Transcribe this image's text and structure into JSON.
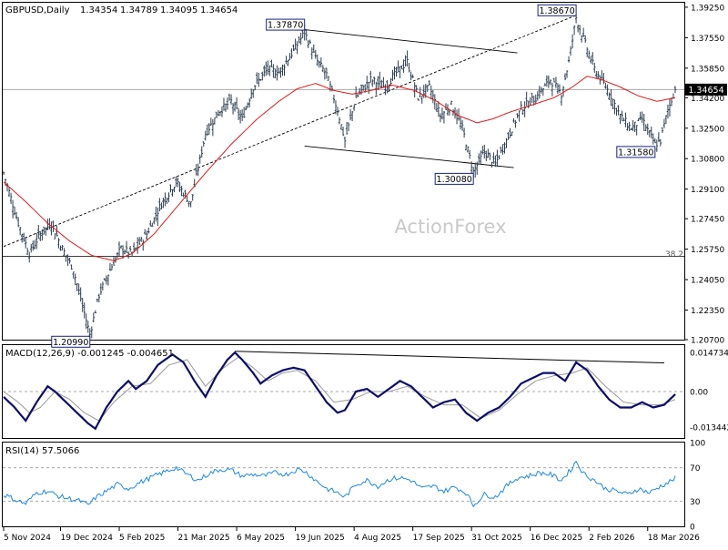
{
  "chart_data": [
    {
      "type": "line",
      "header": {
        "symbol": "GBPUSD,Daily",
        "ohlc": [
          "1.34354",
          "1.34789",
          "1.34095",
          "1.34654"
        ]
      },
      "watermark": "ActionForex",
      "ylim": [
        1.207,
        1.395
      ],
      "yticks": [
        "1.39250",
        "1.37550",
        "1.35850",
        "1.34200",
        "1.32500",
        "1.30800",
        "1.29100",
        "1.27450",
        "1.25750",
        "1.24050",
        "1.22350",
        "1.20700"
      ],
      "current_price_label": "1.34654",
      "current_price": 1.34654,
      "fib_level": {
        "label": "38.2",
        "value": 1.2535
      },
      "x_tick_labels": [
        "5 Nov 2024",
        "19 Dec 2024",
        "5 Feb 2025",
        "21 Mar 2025",
        "6 May 2025",
        "19 Jun 2025",
        "4 Aug 2025",
        "17 Sep 2025",
        "31 Oct 2025",
        "16 Dec 2025",
        "2 Feb 2026",
        "18 Mar 2026"
      ],
      "x_tick_index": [
        0,
        31,
        63,
        95,
        127,
        159,
        191,
        223,
        255,
        287,
        319,
        351
      ],
      "price_labels": [
        {
          "text": "1.37870",
          "index": 164,
          "value": 1.3787,
          "pos": "above"
        },
        {
          "text": "1.38670",
          "index": 312,
          "value": 1.3867,
          "pos": "above"
        },
        {
          "text": "1.30080",
          "index": 256,
          "value": 1.3008,
          "pos": "below"
        },
        {
          "text": "1.31580",
          "index": 355,
          "value": 1.3158,
          "pos": "below"
        },
        {
          "text": "1.20990",
          "index": 47,
          "value": 1.2099,
          "pos": "below"
        }
      ],
      "anchors": [
        [
          0,
          1.3
        ],
        [
          8,
          1.272
        ],
        [
          14,
          1.255
        ],
        [
          20,
          1.266
        ],
        [
          26,
          1.272
        ],
        [
          32,
          1.258
        ],
        [
          38,
          1.246
        ],
        [
          44,
          1.222
        ],
        [
          47,
          1.2099
        ],
        [
          52,
          1.232
        ],
        [
          58,
          1.246
        ],
        [
          64,
          1.258
        ],
        [
          70,
          1.255
        ],
        [
          78,
          1.266
        ],
        [
          86,
          1.283
        ],
        [
          94,
          1.295
        ],
        [
          102,
          1.283
        ],
        [
          110,
          1.322
        ],
        [
          118,
          1.335
        ],
        [
          124,
          1.34
        ],
        [
          130,
          1.33
        ],
        [
          136,
          1.348
        ],
        [
          144,
          1.358
        ],
        [
          150,
          1.356
        ],
        [
          158,
          1.368
        ],
        [
          164,
          1.3787
        ],
        [
          170,
          1.364
        ],
        [
          176,
          1.355
        ],
        [
          182,
          1.335
        ],
        [
          186,
          1.318
        ],
        [
          192,
          1.342
        ],
        [
          200,
          1.352
        ],
        [
          208,
          1.348
        ],
        [
          214,
          1.356
        ],
        [
          220,
          1.362
        ],
        [
          226,
          1.342
        ],
        [
          232,
          1.348
        ],
        [
          238,
          1.332
        ],
        [
          244,
          1.338
        ],
        [
          250,
          1.325
        ],
        [
          256,
          1.3008
        ],
        [
          262,
          1.312
        ],
        [
          268,
          1.305
        ],
        [
          274,
          1.318
        ],
        [
          282,
          1.336
        ],
        [
          290,
          1.342
        ],
        [
          298,
          1.352
        ],
        [
          304,
          1.344
        ],
        [
          308,
          1.362
        ],
        [
          312,
          1.3867
        ],
        [
          316,
          1.375
        ],
        [
          322,
          1.358
        ],
        [
          330,
          1.345
        ],
        [
          336,
          1.332
        ],
        [
          342,
          1.325
        ],
        [
          348,
          1.33
        ],
        [
          355,
          1.3158
        ],
        [
          358,
          1.318
        ],
        [
          362,
          1.335
        ],
        [
          366,
          1.34654
        ]
      ],
      "ma_anchors": [
        [
          0,
          1.295
        ],
        [
          12,
          1.284
        ],
        [
          24,
          1.272
        ],
        [
          36,
          1.262
        ],
        [
          48,
          1.254
        ],
        [
          60,
          1.251
        ],
        [
          70,
          1.255
        ],
        [
          82,
          1.266
        ],
        [
          96,
          1.283
        ],
        [
          110,
          1.3
        ],
        [
          124,
          1.316
        ],
        [
          138,
          1.33
        ],
        [
          150,
          1.34
        ],
        [
          160,
          1.347
        ],
        [
          170,
          1.35
        ],
        [
          180,
          1.346
        ],
        [
          190,
          1.344
        ],
        [
          200,
          1.346
        ],
        [
          212,
          1.349
        ],
        [
          224,
          1.346
        ],
        [
          236,
          1.34
        ],
        [
          248,
          1.332
        ],
        [
          258,
          1.328
        ],
        [
          266,
          1.33
        ],
        [
          276,
          1.334
        ],
        [
          288,
          1.338
        ],
        [
          300,
          1.342
        ],
        [
          310,
          1.348
        ],
        [
          318,
          1.354
        ],
        [
          326,
          1.352
        ],
        [
          336,
          1.348
        ],
        [
          346,
          1.343
        ],
        [
          356,
          1.34
        ],
        [
          366,
          1.342
        ]
      ],
      "trendlines": [
        {
          "from": [
            0,
            1.259
          ],
          "to": [
            312,
            1.388
          ],
          "style": "dashed"
        },
        {
          "from": [
            164,
            1.38
          ],
          "to": [
            280,
            1.367
          ],
          "style": "solid"
        },
        {
          "from": [
            164,
            1.315
          ],
          "to": [
            278,
            1.303
          ],
          "style": "solid"
        }
      ]
    },
    {
      "type": "line",
      "panel": "macd",
      "header": "MACD(12,26,9) -0.001245 -0.004651",
      "ylim": [
        -0.0175,
        0.0175
      ],
      "yticks": [
        {
          "label": "0.014734",
          "value": 0.01473
        },
        {
          "label": "0.00",
          "value": 0.0
        },
        {
          "label": "-0.013442",
          "value": -0.01344
        }
      ],
      "signal_label": "0.00",
      "macd_anchors": [
        [
          0,
          -0.002
        ],
        [
          6,
          -0.006
        ],
        [
          12,
          -0.011
        ],
        [
          18,
          -0.004
        ],
        [
          24,
          0.002
        ],
        [
          28,
          0.0
        ],
        [
          34,
          -0.004
        ],
        [
          40,
          -0.008
        ],
        [
          46,
          -0.012
        ],
        [
          50,
          -0.014
        ],
        [
          56,
          -0.006
        ],
        [
          62,
          0.0
        ],
        [
          68,
          0.004
        ],
        [
          72,
          0.001
        ],
        [
          78,
          0.004
        ],
        [
          84,
          0.01
        ],
        [
          92,
          0.014
        ],
        [
          98,
          0.011
        ],
        [
          104,
          0.004
        ],
        [
          110,
          -0.002
        ],
        [
          116,
          0.006
        ],
        [
          122,
          0.012
        ],
        [
          126,
          0.0147
        ],
        [
          130,
          0.012
        ],
        [
          136,
          0.007
        ],
        [
          140,
          0.003
        ],
        [
          146,
          0.006
        ],
        [
          152,
          0.008
        ],
        [
          158,
          0.009
        ],
        [
          164,
          0.008
        ],
        [
          170,
          0.002
        ],
        [
          176,
          -0.004
        ],
        [
          182,
          -0.008
        ],
        [
          186,
          -0.007
        ],
        [
          192,
          0.0
        ],
        [
          198,
          0.001
        ],
        [
          204,
          -0.002
        ],
        [
          210,
          0.001
        ],
        [
          216,
          0.004
        ],
        [
          222,
          0.002
        ],
        [
          228,
          -0.002
        ],
        [
          234,
          -0.006
        ],
        [
          240,
          -0.004
        ],
        [
          246,
          -0.003
        ],
        [
          252,
          -0.008
        ],
        [
          258,
          -0.011
        ],
        [
          264,
          -0.008
        ],
        [
          270,
          -0.006
        ],
        [
          276,
          -0.002
        ],
        [
          282,
          0.003
        ],
        [
          288,
          0.005
        ],
        [
          294,
          0.007
        ],
        [
          300,
          0.007
        ],
        [
          306,
          0.004
        ],
        [
          312,
          0.011
        ],
        [
          318,
          0.008
        ],
        [
          324,
          0.002
        ],
        [
          330,
          -0.003
        ],
        [
          336,
          -0.006
        ],
        [
          342,
          -0.006
        ],
        [
          348,
          -0.004
        ],
        [
          354,
          -0.006
        ],
        [
          360,
          -0.005
        ],
        [
          366,
          -0.001
        ]
      ],
      "signal_anchors": [
        [
          0,
          0.0
        ],
        [
          8,
          -0.004
        ],
        [
          14,
          -0.008
        ],
        [
          20,
          -0.006
        ],
        [
          28,
          0.0
        ],
        [
          36,
          -0.003
        ],
        [
          44,
          -0.008
        ],
        [
          52,
          -0.011
        ],
        [
          60,
          -0.004
        ],
        [
          70,
          0.002
        ],
        [
          80,
          0.003
        ],
        [
          90,
          0.01
        ],
        [
          100,
          0.012
        ],
        [
          110,
          0.002
        ],
        [
          120,
          0.009
        ],
        [
          128,
          0.013
        ],
        [
          136,
          0.009
        ],
        [
          144,
          0.004
        ],
        [
          152,
          0.007
        ],
        [
          160,
          0.008
        ],
        [
          170,
          0.004
        ],
        [
          180,
          -0.004
        ],
        [
          190,
          -0.003
        ],
        [
          200,
          0.0
        ],
        [
          210,
          0.0
        ],
        [
          220,
          0.002
        ],
        [
          230,
          -0.002
        ],
        [
          240,
          -0.005
        ],
        [
          250,
          -0.005
        ],
        [
          260,
          -0.01
        ],
        [
          270,
          -0.007
        ],
        [
          280,
          -0.001
        ],
        [
          290,
          0.004
        ],
        [
          300,
          0.006
        ],
        [
          310,
          0.007
        ],
        [
          318,
          0.009
        ],
        [
          328,
          0.002
        ],
        [
          338,
          -0.004
        ],
        [
          348,
          -0.005
        ],
        [
          358,
          -0.005
        ],
        [
          366,
          -0.003
        ]
      ],
      "trendline": {
        "from": [
          126,
          0.0152
        ],
        "to": [
          360,
          0.0108
        ]
      }
    },
    {
      "type": "line",
      "panel": "rsi",
      "header": "RSI(14) 57.5066",
      "ylim": [
        0,
        100
      ],
      "yticks": [
        {
          "label": "100",
          "value": 100
        },
        {
          "label": "70",
          "value": 70
        },
        {
          "label": "30",
          "value": 30
        },
        {
          "label": "0",
          "value": 0
        }
      ],
      "levels": [
        70,
        30
      ],
      "rsi_anchors": [
        [
          0,
          38
        ],
        [
          6,
          32
        ],
        [
          12,
          27
        ],
        [
          18,
          40
        ],
        [
          24,
          42
        ],
        [
          30,
          36
        ],
        [
          36,
          33
        ],
        [
          42,
          30
        ],
        [
          46,
          25
        ],
        [
          50,
          34
        ],
        [
          56,
          42
        ],
        [
          62,
          50
        ],
        [
          68,
          45
        ],
        [
          74,
          52
        ],
        [
          80,
          58
        ],
        [
          88,
          65
        ],
        [
          94,
          70
        ],
        [
          100,
          62
        ],
        [
          106,
          55
        ],
        [
          112,
          63
        ],
        [
          118,
          68
        ],
        [
          124,
          67
        ],
        [
          130,
          60
        ],
        [
          136,
          62
        ],
        [
          142,
          60
        ],
        [
          148,
          64
        ],
        [
          154,
          62
        ],
        [
          160,
          68
        ],
        [
          164,
          66
        ],
        [
          170,
          55
        ],
        [
          176,
          45
        ],
        [
          182,
          40
        ],
        [
          186,
          35
        ],
        [
          192,
          50
        ],
        [
          198,
          55
        ],
        [
          204,
          48
        ],
        [
          210,
          56
        ],
        [
          216,
          58
        ],
        [
          222,
          55
        ],
        [
          228,
          45
        ],
        [
          234,
          48
        ],
        [
          240,
          42
        ],
        [
          246,
          47
        ],
        [
          252,
          40
        ],
        [
          256,
          25
        ],
        [
          262,
          38
        ],
        [
          268,
          35
        ],
        [
          274,
          48
        ],
        [
          280,
          58
        ],
        [
          286,
          60
        ],
        [
          292,
          64
        ],
        [
          298,
          62
        ],
        [
          304,
          55
        ],
        [
          310,
          70
        ],
        [
          312,
          78
        ],
        [
          316,
          63
        ],
        [
          322,
          55
        ],
        [
          328,
          45
        ],
        [
          334,
          42
        ],
        [
          340,
          38
        ],
        [
          346,
          45
        ],
        [
          352,
          40
        ],
        [
          358,
          48
        ],
        [
          362,
          52
        ],
        [
          366,
          57.5
        ]
      ]
    }
  ]
}
